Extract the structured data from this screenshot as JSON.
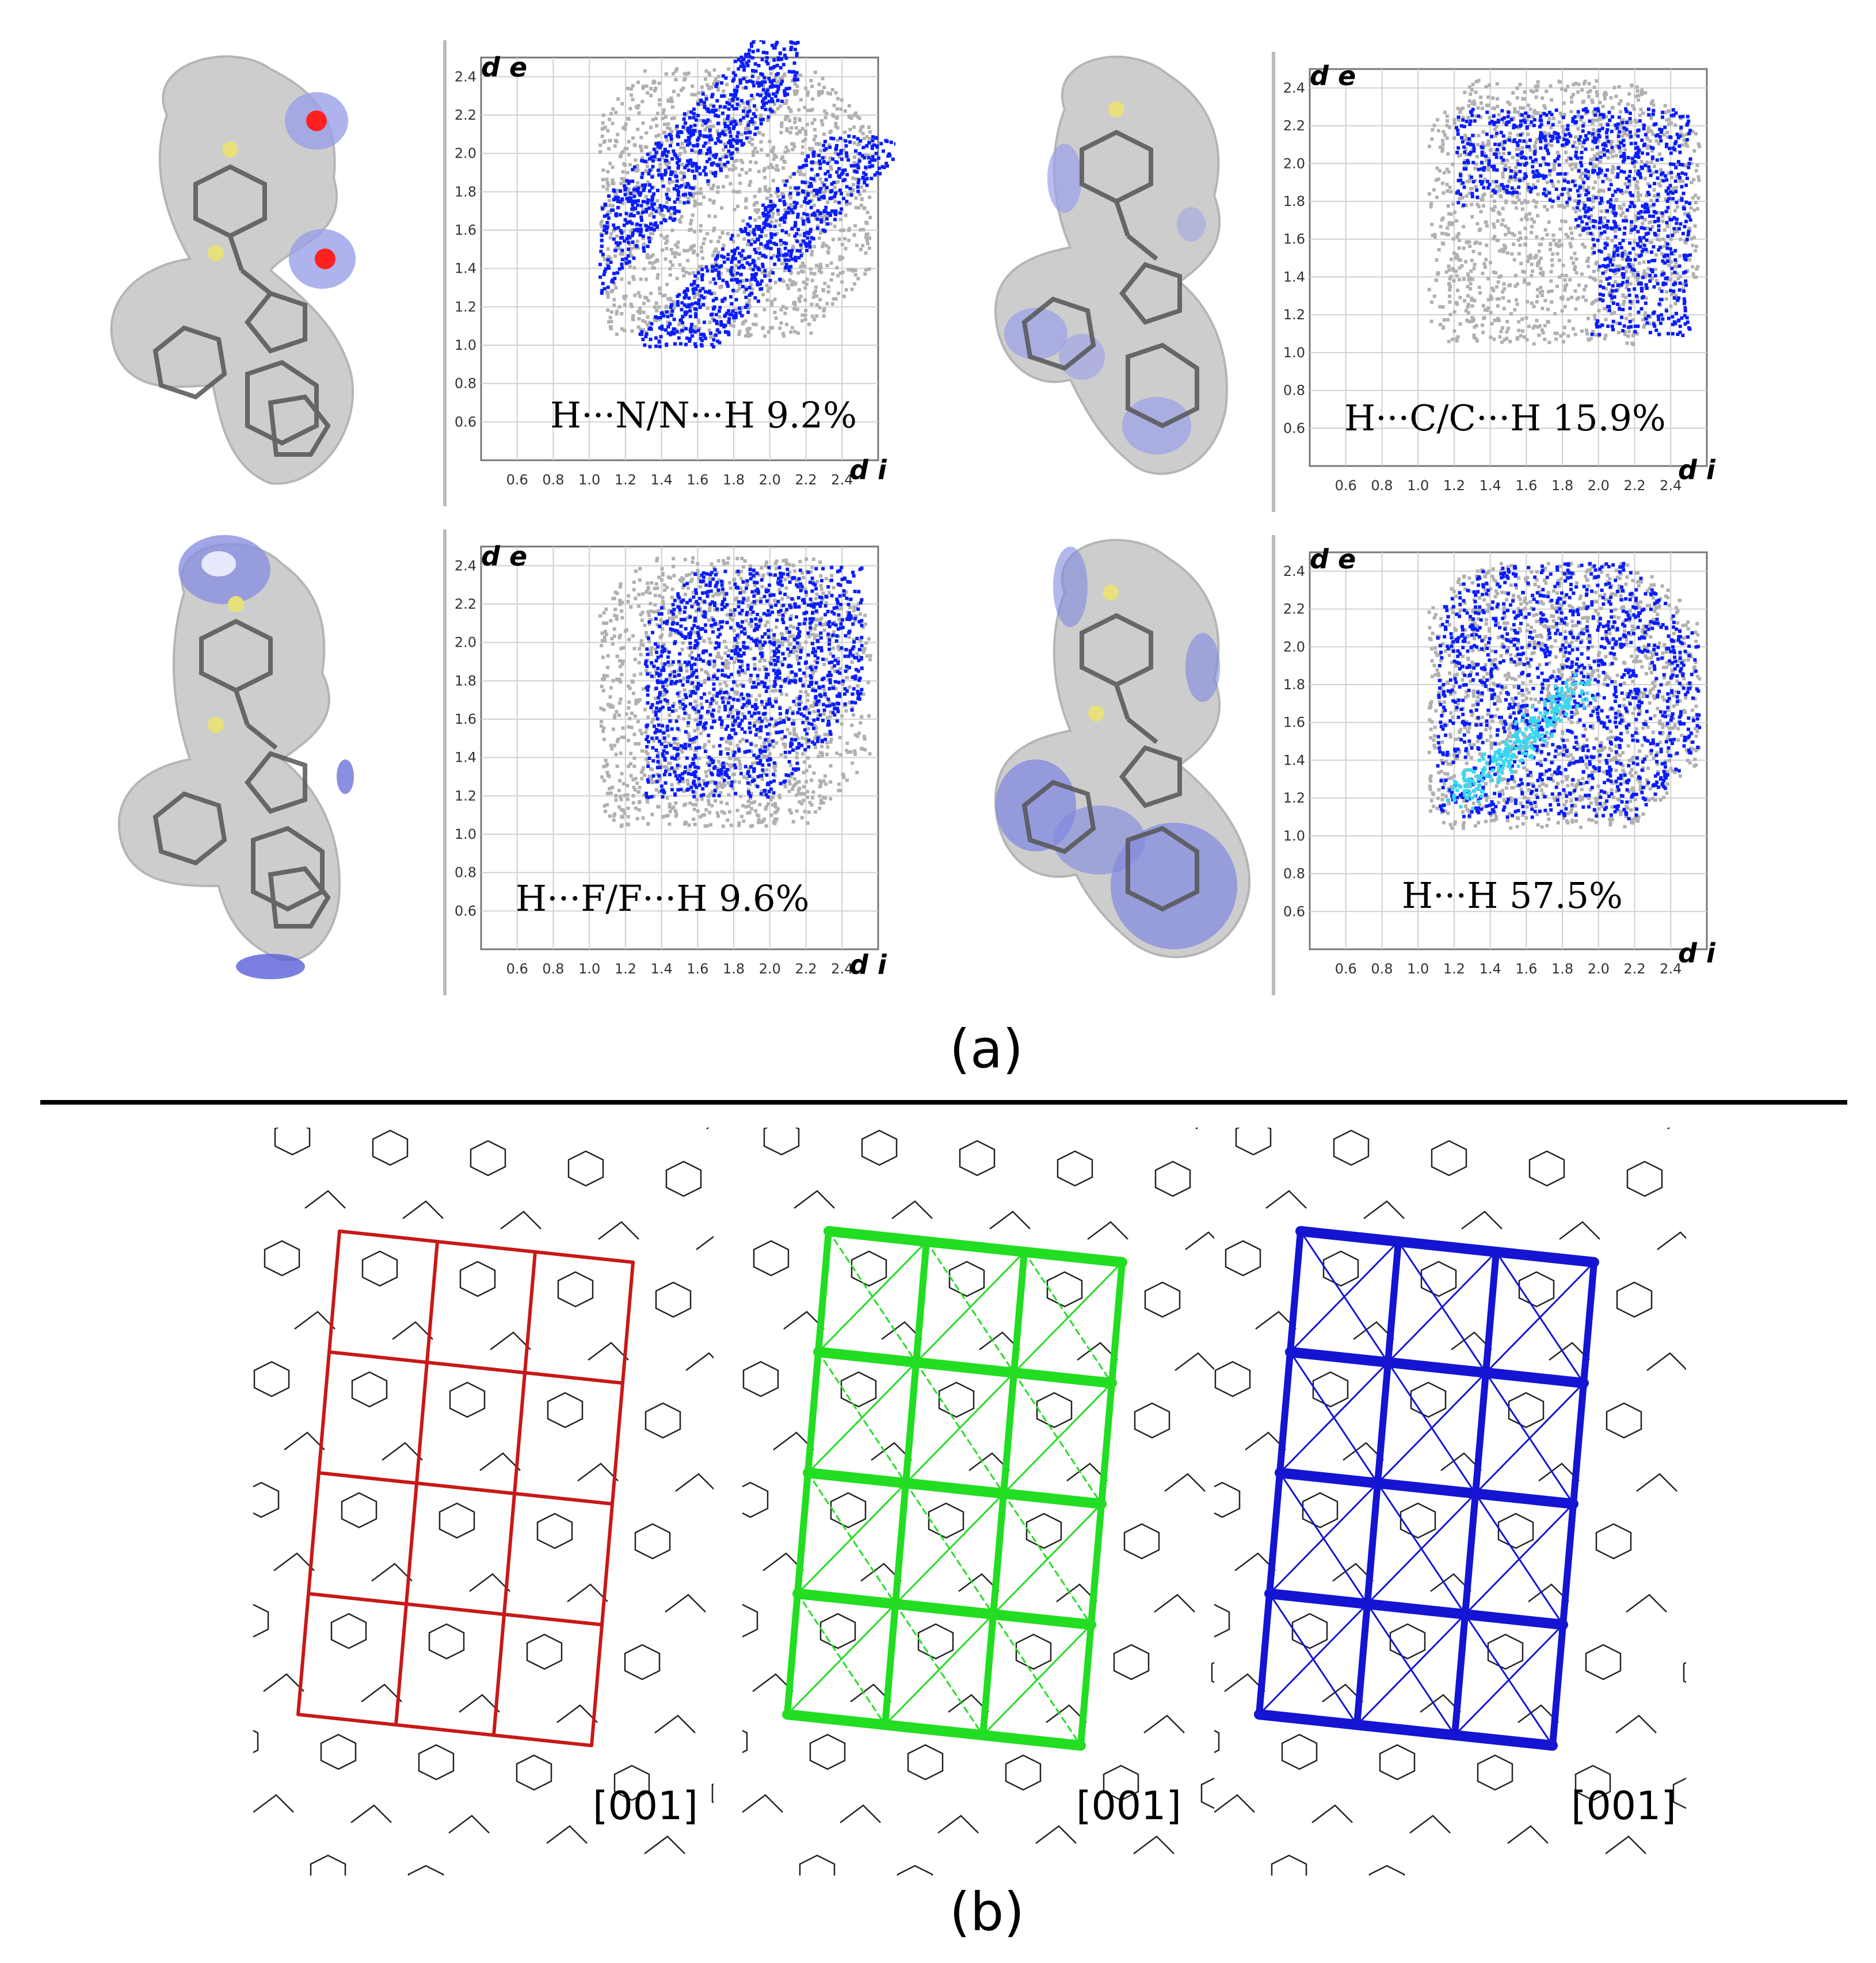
{
  "part_a": {
    "label": "(a)",
    "panels": [
      {
        "name": "h-n",
        "caption": "H···N/N···H  9.2%",
        "axis_de": "d e",
        "axis_di": "d i",
        "highlight_color": "#0a1cff",
        "chart_data": {
          "type": "scatter",
          "title": "",
          "xlabel": "d i",
          "ylabel": "d e",
          "xlim": [
            0.4,
            2.6
          ],
          "ylim": [
            0.4,
            2.5
          ],
          "xticks": [
            "0.6",
            "0.8",
            "1.0",
            "1.2",
            "1.4",
            "1.6",
            "1.8",
            "2.0",
            "2.2",
            "2.4"
          ],
          "yticks": [
            "0.6",
            "0.8",
            "1.0",
            "1.2",
            "1.4",
            "1.6",
            "1.8",
            "2.0",
            "2.2",
            "2.4"
          ],
          "series": [
            {
              "name": "H···N/N···H contacts",
              "value_percent": 9.2
            }
          ]
        }
      },
      {
        "name": "h-c",
        "caption": "H···C/C···H  15.9%",
        "axis_de": "d e",
        "axis_di": "d i",
        "highlight_color": "#0a1cff",
        "chart_data": {
          "type": "scatter",
          "title": "",
          "xlabel": "d i",
          "ylabel": "d e",
          "xlim": [
            0.4,
            2.6
          ],
          "ylim": [
            0.4,
            2.5
          ],
          "xticks": [
            "0.6",
            "0.8",
            "1.0",
            "1.2",
            "1.4",
            "1.6",
            "1.8",
            "2.0",
            "2.2",
            "2.4"
          ],
          "yticks": [
            "0.6",
            "0.8",
            "1.0",
            "1.2",
            "1.4",
            "1.6",
            "1.8",
            "2.0",
            "2.2",
            "2.4"
          ],
          "series": [
            {
              "name": "H···C/C···H contacts",
              "value_percent": 15.9
            }
          ]
        }
      },
      {
        "name": "h-f",
        "caption": "H···F/F···H  9.6%",
        "axis_de": "d e",
        "axis_di": "d i",
        "highlight_color": "#0a1cff",
        "chart_data": {
          "type": "scatter",
          "title": "",
          "xlabel": "d i",
          "ylabel": "d e",
          "xlim": [
            0.4,
            2.6
          ],
          "ylim": [
            0.4,
            2.5
          ],
          "xticks": [
            "0.6",
            "0.8",
            "1.0",
            "1.2",
            "1.4",
            "1.6",
            "1.8",
            "2.0",
            "2.2",
            "2.4"
          ],
          "yticks": [
            "0.6",
            "0.8",
            "1.0",
            "1.2",
            "1.4",
            "1.6",
            "1.8",
            "2.0",
            "2.2",
            "2.4"
          ],
          "series": [
            {
              "name": "H···F/F···H contacts",
              "value_percent": 9.6
            }
          ]
        }
      },
      {
        "name": "h-h",
        "caption": "H···H  57.5%",
        "axis_de": "d e",
        "axis_di": "d i",
        "highlight_color": "#0a1cff",
        "chart_data": {
          "type": "scatter",
          "title": "",
          "xlabel": "d i",
          "ylabel": "d e",
          "xlim": [
            0.4,
            2.6
          ],
          "ylim": [
            0.4,
            2.5
          ],
          "xticks": [
            "0.6",
            "0.8",
            "1.0",
            "1.2",
            "1.4",
            "1.6",
            "1.8",
            "2.0",
            "2.2",
            "2.4"
          ],
          "yticks": [
            "0.6",
            "0.8",
            "1.0",
            "1.2",
            "1.4",
            "1.6",
            "1.8",
            "2.0",
            "2.2",
            "2.4"
          ],
          "series": [
            {
              "name": "H···H contacts",
              "value_percent": 57.5
            }
          ]
        }
      }
    ]
  },
  "part_b": {
    "label": "(b)",
    "frameworks": [
      {
        "name": "red-framework",
        "direction": "[001]",
        "color": "#c81818"
      },
      {
        "name": "green-framework",
        "direction": "[001]",
        "color": "#22dd22"
      },
      {
        "name": "blue-framework",
        "direction": "[001]",
        "color": "#1414d2"
      }
    ]
  }
}
